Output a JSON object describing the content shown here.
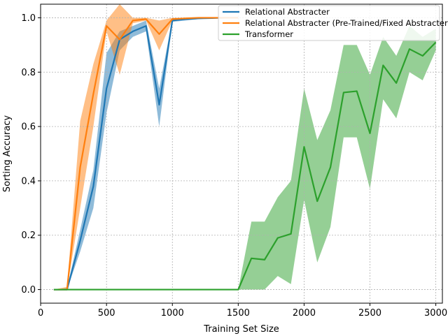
{
  "chart_data": {
    "type": "line",
    "xlabel": "Training Set Size",
    "ylabel": "Sorting Accuracy",
    "xlim": [
      -0.5,
      3050
    ],
    "ylim": [
      -0.05,
      1.05
    ],
    "xticks": [
      0,
      500,
      1000,
      1500,
      2000,
      2500,
      3000
    ],
    "yticks": [
      0.0,
      0.2,
      0.4,
      0.6,
      0.8,
      1.0
    ],
    "xtick_labels": [
      "0",
      "500",
      "1000",
      "1500",
      "2000",
      "2500",
      "3000"
    ],
    "ytick_labels": [
      "0.0",
      "0.2",
      "0.4",
      "0.6",
      "0.8",
      "1.0"
    ],
    "grid": true,
    "legend_position": "top-right",
    "series": [
      {
        "name": "Relational Abstracter",
        "color": "#1f77b4",
        "x": [
          100,
          200,
          300,
          400,
          500,
          600,
          700,
          800,
          900,
          1000,
          1100,
          1200,
          1300,
          1400,
          1500
        ],
        "y": [
          0.0,
          0.0,
          0.18,
          0.38,
          0.74,
          0.92,
          0.95,
          0.97,
          0.68,
          0.99,
          0.995,
          0.998,
          0.999,
          1.0,
          1.0
        ],
        "lower": [
          0.0,
          0.0,
          0.14,
          0.3,
          0.65,
          0.88,
          0.93,
          0.95,
          0.6,
          0.985,
          0.99,
          0.995,
          0.998,
          0.999,
          1.0
        ],
        "upper": [
          0.0,
          0.005,
          0.22,
          0.44,
          0.87,
          0.95,
          0.97,
          0.99,
          0.74,
          0.995,
          1.0,
          1.0,
          1.0,
          1.0,
          1.0
        ]
      },
      {
        "name": "Relational Abstracter (Pre-Trained/Fixed Abstracter)",
        "color": "#ff7f0e",
        "x": [
          100,
          200,
          300,
          400,
          500,
          600,
          700,
          800,
          900,
          1000,
          1100,
          1200,
          1300,
          1400,
          1500
        ],
        "y": [
          0.0,
          0.0,
          0.45,
          0.72,
          0.97,
          0.92,
          0.99,
          0.995,
          0.94,
          0.995,
          0.998,
          1.0,
          1.0,
          1.0,
          1.0
        ],
        "lower": [
          0.0,
          0.0,
          0.3,
          0.6,
          0.95,
          0.79,
          0.98,
          0.99,
          0.88,
          0.99,
          0.995,
          0.999,
          1.0,
          1.0,
          1.0
        ],
        "upper": [
          0.0,
          0.01,
          0.62,
          0.83,
          0.99,
          1.05,
          1.0,
          1.0,
          0.99,
          1.0,
          1.0,
          1.0,
          1.0,
          1.0,
          1.0
        ]
      },
      {
        "name": "Transformer",
        "color": "#2ca02c",
        "x": [
          100,
          200,
          300,
          400,
          500,
          600,
          700,
          800,
          900,
          1000,
          1100,
          1200,
          1300,
          1400,
          1500,
          1600,
          1700,
          1800,
          1900,
          2000,
          2100,
          2200,
          2300,
          2400,
          2500,
          2600,
          2700,
          2800,
          2900,
          3000
        ],
        "y": [
          0,
          0,
          0,
          0,
          0,
          0,
          0,
          0,
          0,
          0,
          0,
          0,
          0,
          0,
          0.0,
          0.115,
          0.11,
          0.19,
          0.205,
          0.525,
          0.325,
          0.45,
          0.725,
          0.73,
          0.575,
          0.825,
          0.76,
          0.885,
          0.86,
          0.91
        ],
        "lower": [
          0,
          0,
          0,
          0,
          0,
          0,
          0,
          0,
          0,
          0,
          0,
          0,
          0,
          0,
          0.0,
          0.0,
          0.0,
          0.05,
          0.02,
          0.33,
          0.1,
          0.23,
          0.56,
          0.56,
          0.37,
          0.7,
          0.63,
          0.8,
          0.77,
          0.88
        ],
        "upper": [
          0,
          0,
          0,
          0,
          0,
          0,
          0,
          0,
          0,
          0,
          0,
          0,
          0,
          0,
          0.0,
          0.25,
          0.25,
          0.34,
          0.4,
          0.74,
          0.55,
          0.66,
          0.9,
          0.9,
          0.79,
          0.93,
          0.86,
          0.97,
          0.93,
          0.96
        ]
      }
    ]
  }
}
